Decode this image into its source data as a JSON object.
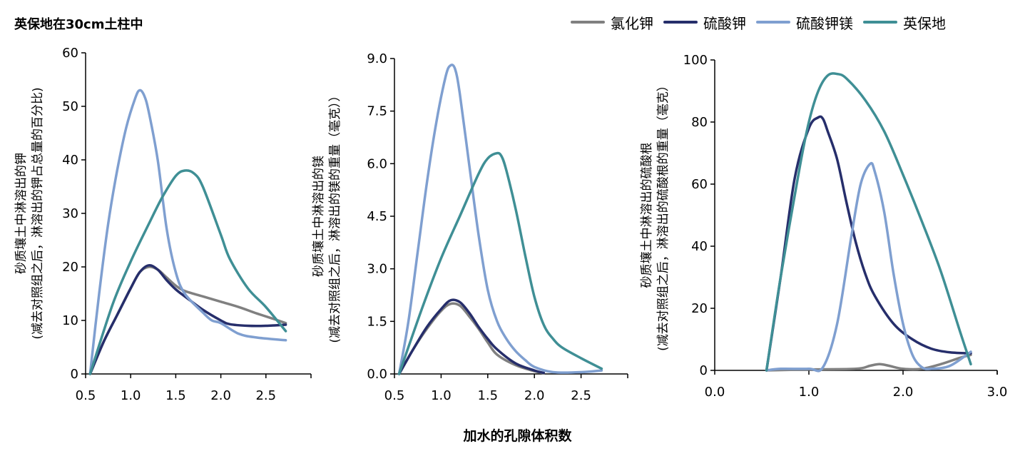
{
  "page_title": "英保地在30cm土柱中",
  "x_label_shared": "加水的孔隙体积数",
  "legend": [
    {
      "label": "氯化钾",
      "color": "#808080"
    },
    {
      "label": "硫酸钾",
      "color": "#262e6b"
    },
    {
      "label": "硫酸钾镁",
      "color": "#7f9fd0"
    },
    {
      "label": "英保地",
      "color": "#3f8f95"
    }
  ],
  "chart_data": [
    {
      "type": "line",
      "ylabel_line1": "砂质壤土中淋溶出的钾",
      "ylabel_line2": "(减去对照组之后，淋溶出的钾占总量的百分比)",
      "xlim": [
        0.5,
        3.0
      ],
      "ylim": [
        0,
        60
      ],
      "xticks": [
        "0.5",
        "1.0",
        "1.5",
        "2.0",
        "2.5"
      ],
      "yticks": [
        "0",
        "10",
        "20",
        "30",
        "40",
        "50",
        "60"
      ],
      "series": [
        {
          "name": "氯化钾",
          "x": [
            0.55,
            0.7,
            0.85,
            1.0,
            1.1,
            1.2,
            1.3,
            1.4,
            1.5,
            1.6,
            1.8,
            2.0,
            2.2,
            2.4,
            2.6,
            2.72
          ],
          "y": [
            0,
            6,
            11,
            16,
            19,
            20,
            19.5,
            18,
            16.5,
            15.5,
            14.5,
            13.5,
            12.5,
            11.3,
            10.2,
            9.5
          ]
        },
        {
          "name": "硫酸钾",
          "x": [
            0.55,
            0.7,
            0.85,
            1.0,
            1.1,
            1.2,
            1.3,
            1.4,
            1.5,
            1.6,
            1.8,
            2.0,
            2.1,
            2.3,
            2.5,
            2.72
          ],
          "y": [
            0,
            6,
            11,
            16,
            19,
            20.3,
            19.5,
            17.5,
            15.8,
            14.5,
            12,
            10,
            9.3,
            9,
            9,
            9.2
          ]
        },
        {
          "name": "硫酸钾镁",
          "x": [
            0.55,
            0.65,
            0.75,
            0.85,
            0.95,
            1.05,
            1.1,
            1.15,
            1.2,
            1.3,
            1.4,
            1.5,
            1.6,
            1.8,
            1.9,
            2.0,
            2.2,
            2.4,
            2.72
          ],
          "y": [
            0,
            15,
            28,
            38,
            46,
            51.5,
            53,
            52,
            49,
            40,
            27,
            19,
            15,
            11.5,
            10,
            9.5,
            7.5,
            6.8,
            6.3
          ]
        },
        {
          "name": "英保地",
          "x": [
            0.55,
            0.8,
            1.0,
            1.2,
            1.35,
            1.5,
            1.6,
            1.7,
            1.8,
            2.0,
            2.1,
            2.3,
            2.5,
            2.72
          ],
          "y": [
            0,
            13,
            21,
            28,
            33,
            37,
            38,
            37.5,
            35,
            26,
            21.5,
            16,
            12.5,
            8
          ]
        }
      ]
    },
    {
      "type": "line",
      "ylabel_line1": "砂质壤土中淋溶出的镁",
      "ylabel_line2": "(减去对照组之后，淋溶出的镁的重量（毫克））",
      "xlim": [
        0.5,
        3.0
      ],
      "ylim": [
        0,
        9.0
      ],
      "xticks": [
        "0.5",
        "1.0",
        "1.5",
        "2.0",
        "2.5"
      ],
      "yticks": [
        "0.0",
        "1.5",
        "3.0",
        "4.5",
        "6.0",
        "7.5",
        "9.0"
      ],
      "series": [
        {
          "name": "氯化钾",
          "x": [
            0.55,
            0.7,
            0.85,
            1.0,
            1.1,
            1.2,
            1.3,
            1.4,
            1.5,
            1.6,
            1.8,
            2.0,
            2.1
          ],
          "y": [
            0,
            0.7,
            1.3,
            1.8,
            2.0,
            1.95,
            1.65,
            1.3,
            0.9,
            0.55,
            0.25,
            0.08,
            0.02
          ]
        },
        {
          "name": "硫酸钾",
          "x": [
            0.55,
            0.7,
            0.85,
            1.0,
            1.1,
            1.2,
            1.3,
            1.4,
            1.5,
            1.6,
            1.8,
            2.0,
            2.1
          ],
          "y": [
            0,
            0.7,
            1.35,
            1.85,
            2.1,
            2.05,
            1.75,
            1.35,
            1.0,
            0.7,
            0.3,
            0.1,
            0.03
          ]
        },
        {
          "name": "硫酸钾镁",
          "x": [
            0.55,
            0.65,
            0.75,
            0.85,
            0.95,
            1.05,
            1.1,
            1.15,
            1.2,
            1.3,
            1.4,
            1.5,
            1.6,
            1.7,
            1.8,
            1.9,
            2.0,
            2.2,
            2.5,
            2.72
          ],
          "y": [
            0,
            1.5,
            3.5,
            5.5,
            7.2,
            8.5,
            8.8,
            8.7,
            8.0,
            6.0,
            4.0,
            2.4,
            1.5,
            1.0,
            0.65,
            0.4,
            0.2,
            0.05,
            0.05,
            0.1
          ]
        },
        {
          "name": "英保地",
          "x": [
            0.55,
            0.8,
            1.0,
            1.2,
            1.4,
            1.5,
            1.6,
            1.65,
            1.7,
            1.8,
            1.9,
            2.0,
            2.1,
            2.2,
            2.3,
            2.5,
            2.72
          ],
          "y": [
            0,
            1.9,
            3.3,
            4.5,
            5.7,
            6.15,
            6.3,
            6.2,
            5.8,
            4.7,
            3.4,
            2.2,
            1.4,
            1.0,
            0.75,
            0.45,
            0.15
          ]
        }
      ]
    },
    {
      "type": "line",
      "ylabel_line1": "砂质壤土中淋溶出的硫酸根",
      "ylabel_line2": "(减去对照组之后，淋溶出的硫酸根的重量（毫克）",
      "xlim": [
        0.0,
        3.0
      ],
      "ylim": [
        0,
        100
      ],
      "xticks": [
        "0.0",
        "1.0",
        "2.0",
        "3.0"
      ],
      "yticks": [
        "0",
        "20",
        "40",
        "60",
        "80",
        "100"
      ],
      "series": [
        {
          "name": "氯化钾",
          "x": [
            0.55,
            1.0,
            1.5,
            1.65,
            1.75,
            1.85,
            2.0,
            2.2,
            2.4,
            2.6,
            2.72
          ],
          "y": [
            0,
            0.3,
            0.5,
            1.5,
            2,
            1.5,
            0.5,
            0.5,
            2,
            4,
            5
          ]
        },
        {
          "name": "硫酸钾",
          "x": [
            0.55,
            0.7,
            0.85,
            1.0,
            1.1,
            1.15,
            1.2,
            1.3,
            1.4,
            1.5,
            1.6,
            1.7,
            1.9,
            2.1,
            2.3,
            2.5,
            2.72
          ],
          "y": [
            0,
            30,
            62,
            78,
            81.5,
            81,
            77,
            68,
            54,
            41,
            31,
            24,
            15,
            10,
            7,
            5.8,
            5.5
          ]
        },
        {
          "name": "硫酸钾镁",
          "x": [
            0.55,
            0.7,
            1.0,
            1.15,
            1.3,
            1.45,
            1.55,
            1.65,
            1.7,
            1.8,
            1.9,
            2.0,
            2.1,
            2.2,
            2.3,
            2.5,
            2.72
          ],
          "y": [
            0,
            0.5,
            0.5,
            1,
            15,
            43,
            60,
            66.5,
            64,
            51,
            31,
            15,
            5,
            1,
            0.5,
            1.5,
            6
          ]
        },
        {
          "name": "英保地",
          "x": [
            0.55,
            0.7,
            0.9,
            1.0,
            1.1,
            1.2,
            1.3,
            1.4,
            1.6,
            1.8,
            2.0,
            2.2,
            2.4,
            2.6,
            2.72
          ],
          "y": [
            0,
            30,
            65,
            80,
            90,
            95,
            95.5,
            94,
            87,
            77,
            63,
            48,
            32,
            13,
            2
          ]
        }
      ]
    }
  ]
}
